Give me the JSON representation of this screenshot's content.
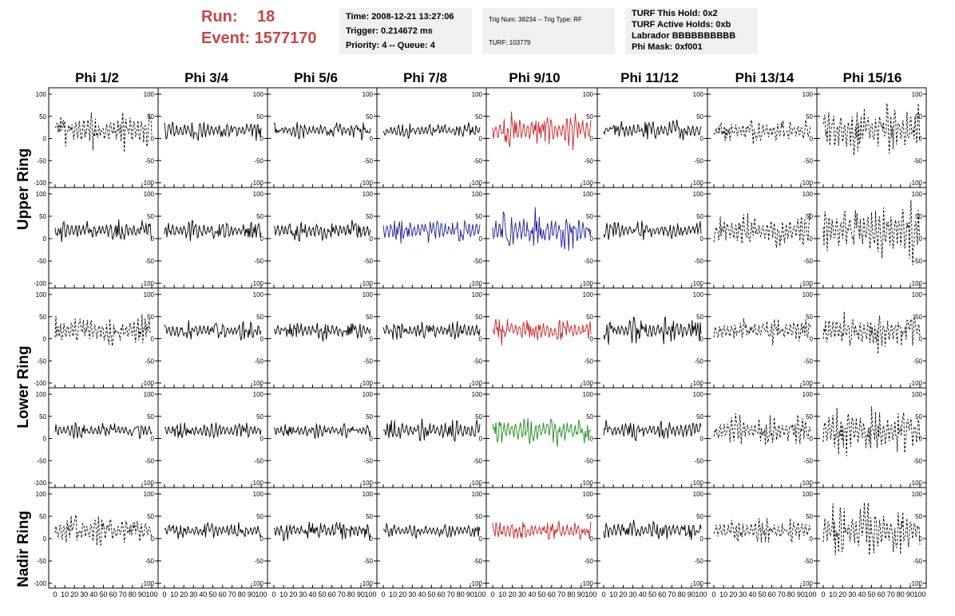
{
  "header": {
    "run_label": "Run:",
    "run_value": "18",
    "event_label": "Event:",
    "event_value": "1577170"
  },
  "info_box_1": {
    "time": "Time: 2008-12-21 13:27:06",
    "trigger": "Trigger: 0.214672 ms",
    "priority": "Priority: 4 -- Queue: 4"
  },
  "info_box_2": {
    "trig": "Trig Num: 38234 -- Trig Type: RF",
    "turf": "TURF: 103779"
  },
  "info_box_3": {
    "hold": "TURF This Hold: 0x2",
    "active": "TURF Active Holds: 0xb",
    "labrador": "Labrador BBBBBBBBBB",
    "mask": "Phi Mask: 0xf001"
  },
  "columns": [
    "Phi 1/2",
    "Phi 3/4",
    "Phi 5/6",
    "Phi 7/8",
    "Phi 9/10",
    "Phi 11/12",
    "Phi 13/14",
    "Phi 15/16"
  ],
  "row_labels": [
    "Upper Ring",
    "Lower Ring",
    "Nadir Ring"
  ],
  "colors": {
    "red": "#cc2222",
    "blue": "#1f1f99",
    "green": "#1a8a1a",
    "black": "#000000",
    "run_text": "#cc4444",
    "info_bg": "#f0f0f0"
  },
  "chart_data": {
    "type": "line",
    "rows": 5,
    "cols": 8,
    "ylim": [
      -100,
      100
    ],
    "xlim": [
      0,
      100
    ],
    "y_ticks": [
      "100",
      "50",
      "0",
      "-50",
      "-100"
    ],
    "x_ticks": [
      "0",
      "10",
      "20",
      "30",
      "40",
      "50",
      "60",
      "70",
      "80",
      "90",
      "100"
    ],
    "cell_colors": [
      [
        "black",
        "black",
        "black",
        "black",
        "red",
        "black",
        "black",
        "black"
      ],
      [
        "black",
        "black",
        "black",
        "blue",
        "blue",
        "black",
        "black",
        "black"
      ],
      [
        "black",
        "black",
        "black",
        "black",
        "red",
        "black",
        "black",
        "black"
      ],
      [
        "black",
        "black",
        "black",
        "black",
        "green",
        "black",
        "black",
        "black"
      ],
      [
        "black",
        "black",
        "black",
        "black",
        "red",
        "black",
        "black",
        "black"
      ]
    ],
    "cell_dashed": [
      [
        true,
        false,
        false,
        false,
        false,
        false,
        true,
        true
      ],
      [
        false,
        false,
        false,
        false,
        false,
        false,
        true,
        true
      ],
      [
        true,
        false,
        false,
        false,
        false,
        false,
        true,
        true
      ],
      [
        false,
        false,
        false,
        false,
        false,
        false,
        true,
        true
      ],
      [
        true,
        false,
        false,
        false,
        false,
        false,
        true,
        true
      ]
    ],
    "cell_amplitude": [
      [
        35,
        18,
        16,
        14,
        30,
        20,
        22,
        48
      ],
      [
        20,
        18,
        18,
        24,
        38,
        16,
        30,
        55
      ],
      [
        28,
        18,
        18,
        16,
        22,
        25,
        22,
        38
      ],
      [
        15,
        14,
        14,
        20,
        25,
        18,
        28,
        45
      ],
      [
        28,
        14,
        18,
        12,
        20,
        20,
        22,
        48
      ]
    ]
  }
}
